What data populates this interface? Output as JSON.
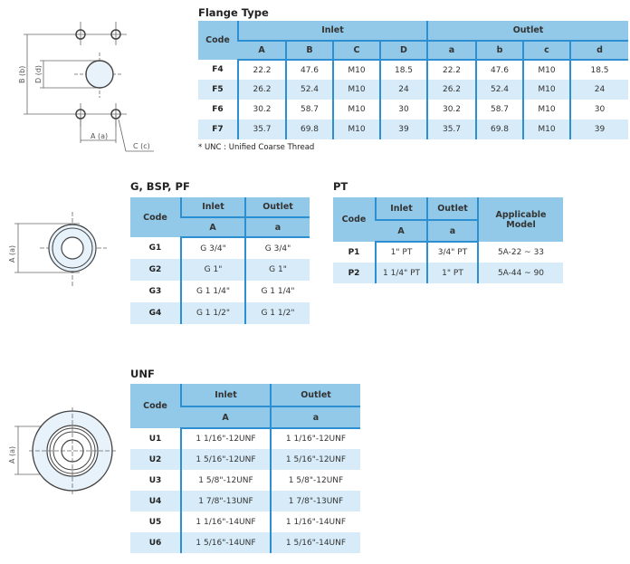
{
  "flange": {
    "title": "Flange Type",
    "header": {
      "code": "Code",
      "inlet": "Inlet",
      "outlet": "Outlet",
      "cols": [
        "A",
        "B",
        "C",
        "D",
        "a",
        "b",
        "c",
        "d"
      ]
    },
    "rows": [
      [
        "F4",
        "22.2",
        "47.6",
        "M10",
        "18.5",
        "22.2",
        "47.6",
        "M10",
        "18.5"
      ],
      [
        "F5",
        "26.2",
        "52.4",
        "M10",
        "24",
        "26.2",
        "52.4",
        "M10",
        "24"
      ],
      [
        "F6",
        "30.2",
        "58.7",
        "M10",
        "30",
        "30.2",
        "58.7",
        "M10",
        "30"
      ],
      [
        "F7",
        "35.7",
        "69.8",
        "M10",
        "39",
        "35.7",
        "69.8",
        "M10",
        "39"
      ]
    ],
    "note": "* UNC : Unified Coarse Thread",
    "diagram_labels": {
      "b": "B (b)",
      "d": "D (d)",
      "a": "A (a)",
      "c": "C (c)"
    }
  },
  "g": {
    "title": "G, BSP, PF",
    "header": {
      "code": "Code",
      "inlet": "Inlet",
      "outlet": "Outlet",
      "cols": [
        "A",
        "a"
      ]
    },
    "rows": [
      [
        "G1",
        "G 3/4\"",
        "G 3/4\""
      ],
      [
        "G2",
        "G 1\"",
        "G 1\""
      ],
      [
        "G3",
        "G 1 1/4\"",
        "G 1 1/4\""
      ],
      [
        "G4",
        "G 1 1/2\"",
        "G 1 1/2\""
      ]
    ],
    "diagram_label": "A (a)"
  },
  "pt": {
    "title": "PT",
    "header": {
      "code": "Code",
      "inlet": "Inlet",
      "outlet": "Outlet",
      "model": "Applicable Model",
      "cols": [
        "A",
        "a"
      ]
    },
    "rows": [
      [
        "P1",
        "1\" PT",
        "3/4\" PT",
        "5A-22 ~ 33"
      ],
      [
        "P2",
        "1 1/4\" PT",
        "1\" PT",
        "5A-44 ~ 90"
      ]
    ]
  },
  "unf": {
    "title": "UNF",
    "header": {
      "code": "Code",
      "inlet": "Inlet",
      "outlet": "Outlet",
      "cols": [
        "A",
        "a"
      ]
    },
    "rows": [
      [
        "U1",
        "1 1/16\"-12UNF",
        "1 1/16\"-12UNF"
      ],
      [
        "U2",
        "1 5/16\"-12UNF",
        "1 5/16\"-12UNF"
      ],
      [
        "U3",
        "1 5/8\"-12UNF",
        "1 5/8\"-12UNF"
      ],
      [
        "U4",
        "1 7/8\"-13UNF",
        "1 7/8\"-13UNF"
      ],
      [
        "U5",
        "1 1/16\"-14UNF",
        "1 1/16\"-14UNF"
      ],
      [
        "U6",
        "1 5/16\"-14UNF",
        "1 5/16\"-14UNF"
      ]
    ],
    "diagram_label": "A (a)"
  },
  "colors": {
    "header": "#92c9e8",
    "stripe": "#d7ebf8",
    "rule": "#2b8fd1"
  }
}
